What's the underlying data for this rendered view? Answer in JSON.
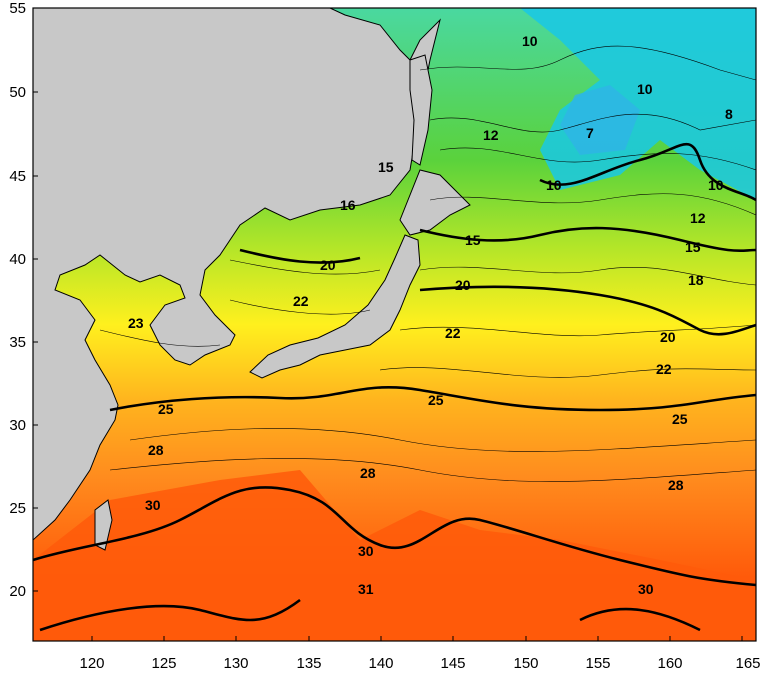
{
  "map": {
    "x_axis": {
      "ticks": [
        "120",
        "125",
        "130",
        "135",
        "140",
        "145",
        "150",
        "155",
        "160",
        "165"
      ]
    },
    "y_axis": {
      "ticks": [
        "55",
        "50",
        "45",
        "40",
        "35",
        "30",
        "25",
        "20"
      ]
    },
    "contour_labels": [
      "10",
      "10",
      "8",
      "7",
      "12",
      "10",
      "10",
      "15",
      "16",
      "12",
      "15",
      "15",
      "20",
      "20",
      "18",
      "22",
      "20",
      "23",
      "22",
      "22",
      "25",
      "25",
      "25",
      "28",
      "28",
      "28",
      "30",
      "30",
      "31",
      "30"
    ],
    "colors": {
      "land": "#c8c8c8",
      "sst_8": "#19c8e6",
      "sst_10": "#3cd8a0",
      "sst_15": "#5ad23c",
      "sst_20": "#d2e614",
      "sst_22": "#fff01e",
      "sst_25": "#ffb41e",
      "sst_28": "#ff7814",
      "sst_30": "#ff5a0a"
    }
  }
}
